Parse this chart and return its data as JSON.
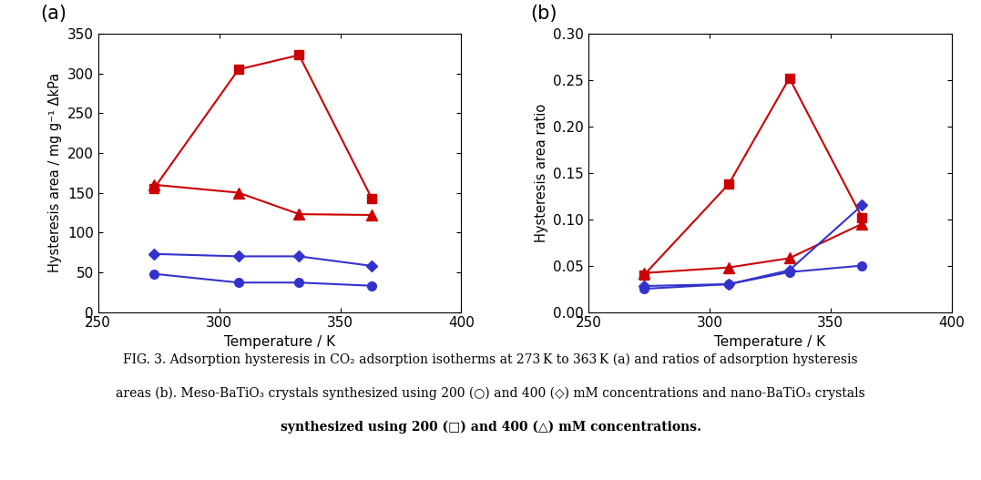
{
  "temperatures": [
    273,
    308,
    333,
    363
  ],
  "plot_a": {
    "red_square": [
      155,
      305,
      323,
      143
    ],
    "red_triangle": [
      160,
      150,
      123,
      122
    ],
    "blue_diamond": [
      73,
      70,
      70,
      58
    ],
    "blue_circle": [
      48,
      37,
      37,
      33
    ]
  },
  "plot_b": {
    "red_square": [
      0.04,
      0.138,
      0.252,
      0.102
    ],
    "red_triangle": [
      0.042,
      0.048,
      0.058,
      0.095
    ],
    "blue_diamond": [
      0.028,
      0.03,
      0.045,
      0.115
    ],
    "blue_circle": [
      0.025,
      0.03,
      0.043,
      0.05
    ]
  },
  "ylabel_a": "Hysteresis area / mg g⁻¹ ΔkPa",
  "ylabel_b": "Hysteresis area ratio",
  "xlabel": "Temperature / K",
  "xlim": [
    250,
    400
  ],
  "ylim_a": [
    0,
    350
  ],
  "ylim_b": [
    0,
    0.3
  ],
  "xticks": [
    250,
    300,
    350,
    400
  ],
  "yticks_a": [
    0,
    50,
    100,
    150,
    200,
    250,
    300,
    350
  ],
  "yticks_b": [
    0,
    0.05,
    0.1,
    0.15,
    0.2,
    0.25,
    0.3
  ],
  "red_color": "#cc0000",
  "blue_color": "#3333cc",
  "label_a": "(a)",
  "label_b": "(b)"
}
